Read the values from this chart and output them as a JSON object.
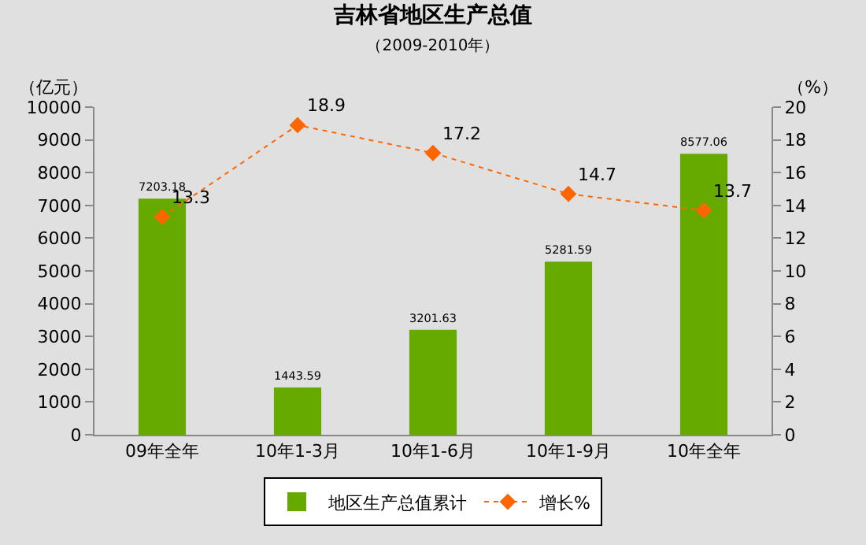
{
  "chart_data": {
    "type": "bar",
    "title": "吉林省地区生产总值",
    "subtitle": "（2009-2010年）",
    "ylabel": "（亿元）",
    "y2label": "（%）",
    "categories": [
      "09年全年",
      "10年1-3月",
      "10年1-6月",
      "10年1-9月",
      "10年全年"
    ],
    "series": [
      {
        "name": "地区生产总值累计",
        "color": "#66aa00",
        "values": [
          7203.18,
          1443.59,
          3201.63,
          5281.59,
          8577.06
        ]
      },
      {
        "name": "增长%",
        "type": "line",
        "axis": "y2",
        "color": "#ff6600",
        "values": [
          13.3,
          18.9,
          17.2,
          14.7,
          13.7
        ],
        "marker": "diamond",
        "line_style": "dotted"
      }
    ],
    "ylim": [
      0,
      10000
    ],
    "yticks": [
      0,
      1000,
      2000,
      3000,
      4000,
      5000,
      6000,
      7000,
      8000,
      9000,
      10000
    ],
    "y2lim": [
      0,
      20
    ],
    "y2ticks": [
      0,
      2,
      4,
      6,
      8,
      10,
      12,
      14,
      16,
      18,
      20
    ],
    "data_labels": true,
    "legend": "bottom",
    "grid": false
  }
}
